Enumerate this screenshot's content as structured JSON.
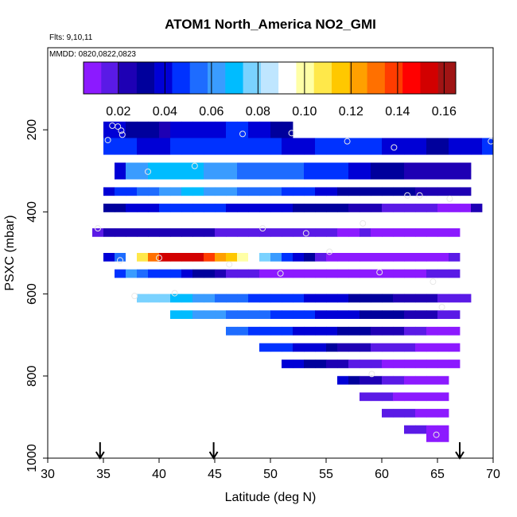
{
  "chart_data": {
    "type": "heatmap",
    "title": "ATOM1 North_America NO2_GMI",
    "annotations": [
      "Flts: 9,10,11",
      "MMDD: 0820,0822,0823"
    ],
    "xlabel": "Latitude (deg N)",
    "ylabel": "PSXC (mbar)",
    "xlim": [
      30,
      70
    ],
    "ylim": [
      1000,
      0
    ],
    "x_ticks": [
      "30",
      "35",
      "40",
      "45",
      "50",
      "55",
      "60",
      "65",
      "70"
    ],
    "y_ticks": [
      "200",
      "400",
      "600",
      "800",
      "1000"
    ],
    "grid": false,
    "colorbar": {
      "placement": "top",
      "range": [
        0.005,
        0.165
      ],
      "tick_values": [
        0.02,
        0.04,
        0.06,
        0.08,
        0.1,
        0.12,
        0.14,
        0.16
      ],
      "tick_labels": [
        "0.02",
        "0.04",
        "0.06",
        "0.08",
        "0.10",
        "0.12",
        "0.14",
        "0.16"
      ],
      "colors": [
        "#8c1aff",
        "#5a1ae6",
        "#1e00b4",
        "#00009c",
        "#0000d6",
        "#0032ff",
        "#1e6cff",
        "#3a9cff",
        "#00bcff",
        "#7ad2ff",
        "#bfe6ff",
        "#ffffff",
        "#ffffa6",
        "#ffe84a",
        "#ffc800",
        "#ffa000",
        "#ff7000",
        "#ff3c00",
        "#ff0000",
        "#d20000",
        "#a01414"
      ]
    },
    "cell_size": {
      "lat": 1,
      "pressure": 20
    },
    "rows": [
      {
        "p": 180,
        "from": 35,
        "to": 52,
        "values": [
          0.04,
          0.04,
          0.03,
          0.028,
          0.028,
          0.026,
          0.04,
          0.04,
          0.04,
          0.042,
          0.042,
          0.045,
          0.045,
          0.04,
          0.04,
          0.03,
          0.03
        ]
      },
      {
        "p": 200,
        "from": 35,
        "to": 52,
        "values": [
          0.038,
          0.038,
          0.03,
          0.028,
          0.028,
          0.026,
          0.038,
          0.04,
          0.04,
          0.042,
          0.042,
          0.045,
          0.045,
          0.04,
          0.04,
          0.03,
          0.03
        ]
      },
      {
        "p": 220,
        "from": 35,
        "to": 70,
        "values": [
          0.048,
          0.048,
          0.045,
          0.04,
          0.04,
          0.042,
          0.045,
          0.045,
          0.046,
          0.046,
          0.048,
          0.05,
          0.05,
          0.048,
          0.045,
          0.045,
          0.04,
          0.04,
          0.042,
          0.045,
          0.045,
          0.05,
          0.05,
          0.048,
          0.045,
          0.042,
          0.04,
          0.038,
          0.036,
          0.035,
          0.035,
          0.038,
          0.04,
          0.042,
          0.045
        ]
      },
      {
        "p": 240,
        "from": 35,
        "to": 70,
        "values": [
          0.048,
          0.048,
          0.045,
          0.04,
          0.04,
          0.042,
          0.045,
          0.045,
          0.046,
          0.046,
          0.048,
          0.05,
          0.05,
          0.048,
          0.045,
          0.045,
          0.04,
          0.04,
          0.042,
          0.045,
          0.045,
          0.05,
          0.05,
          0.048,
          0.045,
          0.042,
          0.04,
          0.038,
          0.036,
          0.035,
          0.035,
          0.038,
          0.04,
          0.042,
          0.045
        ]
      },
      {
        "p": 280,
        "from": 36,
        "to": 68,
        "values": [
          0.04,
          0.06,
          0.065,
          0.07,
          0.072,
          0.07,
          0.068,
          0.066,
          0.064,
          0.062,
          0.06,
          0.058,
          0.058,
          0.058,
          0.056,
          0.054,
          0.052,
          0.05,
          0.048,
          0.046,
          0.044,
          0.04,
          0.036,
          0.035,
          0.034,
          0.028,
          0.026,
          0.024,
          0.024,
          0.024,
          0.025,
          0.026
        ]
      },
      {
        "p": 300,
        "from": 36,
        "to": 68,
        "values": [
          0.04,
          0.06,
          0.065,
          0.07,
          0.072,
          0.07,
          0.068,
          0.066,
          0.064,
          0.062,
          0.06,
          0.058,
          0.058,
          0.058,
          0.056,
          0.054,
          0.052,
          0.05,
          0.048,
          0.046,
          0.044,
          0.04,
          0.036,
          0.035,
          0.034,
          0.028,
          0.026,
          0.024,
          0.024,
          0.024,
          0.025,
          0.026
        ]
      },
      {
        "p": 340,
        "from": 35,
        "to": 68,
        "values": [
          0.04,
          0.045,
          0.048,
          0.055,
          0.058,
          0.062,
          0.065,
          0.066,
          0.066,
          0.064,
          0.062,
          0.06,
          0.058,
          0.056,
          0.055,
          0.052,
          0.05,
          0.046,
          0.044,
          0.04,
          0.036,
          0.035,
          0.034,
          0.033,
          0.032,
          0.03,
          0.03,
          0.028,
          0.026,
          0.025,
          0.024,
          0.024,
          0.026
        ]
      },
      {
        "p": 380,
        "from": 35,
        "to": 69,
        "values": [
          0.03,
          0.032,
          0.036,
          0.04,
          0.042,
          0.044,
          0.046,
          0.046,
          0.046,
          0.045,
          0.044,
          0.043,
          0.042,
          0.041,
          0.04,
          0.038,
          0.036,
          0.034,
          0.032,
          0.03,
          0.03,
          0.028,
          0.026,
          0.024,
          0.022,
          0.02,
          0.019,
          0.018,
          0.016,
          0.014,
          0.012,
          0.01,
          0.012,
          0.022
        ]
      },
      {
        "p": 440,
        "from": 34,
        "to": 67,
        "values": [
          0.02,
          0.022,
          0.022,
          0.022,
          0.022,
          0.022,
          0.022,
          0.022,
          0.022,
          0.022,
          0.022,
          0.02,
          0.018,
          0.018,
          0.02,
          0.018,
          0.018,
          0.016,
          0.018,
          0.02,
          0.015,
          0.014,
          0.012,
          0.012,
          0.014,
          0.012,
          0.012,
          0.01,
          0.012,
          0.012,
          0.01,
          0.008,
          0.006
        ]
      },
      {
        "p": 500,
        "from": 35,
        "to": 67,
        "values": [
          0.04,
          0.055,
          0.09,
          0.11,
          0.13,
          0.15,
          0.155,
          0.155,
          0.15,
          0.14,
          0.125,
          0.115,
          0.1,
          0.09,
          0.075,
          0.06,
          0.05,
          0.04,
          0.03,
          0.018,
          0.012,
          0.01,
          0.012,
          0.01,
          0.01,
          0.012,
          0.012,
          0.01,
          0.01,
          0.012,
          0.01,
          0.015
        ]
      },
      {
        "p": 540,
        "from": 36,
        "to": 67,
        "values": [
          0.05,
          0.06,
          0.055,
          0.05,
          0.046,
          0.044,
          0.04,
          0.035,
          0.03,
          0.025,
          0.02,
          0.015,
          0.015,
          0.012,
          0.012,
          0.01,
          0.01,
          0.01,
          0.012,
          0.01,
          0.01,
          0.012,
          0.01,
          0.012,
          0.01,
          0.008,
          0.008,
          0.008,
          0.02,
          0.02,
          0.02
        ]
      },
      {
        "p": 600,
        "from": 37,
        "to": 68,
        "values": [
          0.09,
          0.08,
          0.078,
          0.075,
          0.072,
          0.07,
          0.065,
          0.06,
          0.058,
          0.055,
          0.052,
          0.05,
          0.048,
          0.046,
          0.045,
          0.044,
          0.042,
          0.04,
          0.038,
          0.036,
          0.034,
          0.032,
          0.03,
          0.028,
          0.026,
          0.025,
          0.024,
          0.022,
          0.02,
          0.02,
          0.02
        ]
      },
      {
        "p": 640,
        "from": 41,
        "to": 67,
        "values": [
          0.07,
          0.066,
          0.064,
          0.062,
          0.06,
          0.058,
          0.056,
          0.054,
          0.052,
          0.05,
          0.048,
          0.046,
          0.044,
          0.042,
          0.04,
          0.038,
          0.036,
          0.034,
          0.032,
          0.03,
          0.028,
          0.026,
          0.024,
          0.022,
          0.02,
          0.02
        ]
      },
      {
        "p": 680,
        "from": 46,
        "to": 67,
        "values": [
          0.055,
          0.052,
          0.05,
          0.048,
          0.046,
          0.044,
          0.042,
          0.04,
          0.038,
          0.036,
          0.034,
          0.03,
          0.028,
          0.026,
          0.024,
          0.022,
          0.02,
          0.016,
          0.012,
          0.01,
          0.01
        ]
      },
      {
        "p": 720,
        "from": 49,
        "to": 67,
        "values": [
          0.048,
          0.046,
          0.044,
          0.042,
          0.04,
          0.036,
          0.03,
          0.026,
          0.024,
          0.022,
          0.02,
          0.018,
          0.016,
          0.014,
          0.012,
          0.01,
          0.01,
          0.012
        ]
      },
      {
        "p": 760,
        "from": 51,
        "to": 67,
        "values": [
          0.042,
          0.04,
          0.034,
          0.028,
          0.024,
          0.022,
          0.02,
          0.016,
          0.014,
          0.012,
          0.01,
          0.01,
          0.01,
          0.01,
          0.008,
          0.008
        ]
      },
      {
        "p": 800,
        "from": 56,
        "to": 66,
        "values": [
          0.04,
          0.03,
          0.026,
          0.022,
          0.02,
          0.014,
          0.012,
          0.01,
          0.008,
          0.008
        ]
      },
      {
        "p": 840,
        "from": 58,
        "to": 66,
        "values": [
          0.02,
          0.016,
          0.014,
          0.012,
          0.01,
          0.008,
          0.008,
          0.008
        ]
      },
      {
        "p": 880,
        "from": 60,
        "to": 66,
        "values": [
          0.02,
          0.018,
          0.014,
          0.01,
          0.008,
          0.008
        ]
      },
      {
        "p": 920,
        "from": 62,
        "to": 66,
        "values": [
          0.018,
          0.02,
          0.01,
          0.008
        ]
      },
      {
        "p": 940,
        "from": 64,
        "to": 66,
        "values": [
          0.006,
          0.006
        ]
      }
    ],
    "points": [
      {
        "lat": 34.5,
        "p": 440
      },
      {
        "lat": 35.4,
        "p": 225
      },
      {
        "lat": 35.8,
        "p": 190
      },
      {
        "lat": 36.3,
        "p": 192
      },
      {
        "lat": 36.6,
        "p": 202
      },
      {
        "lat": 36.7,
        "p": 212
      },
      {
        "lat": 36.5,
        "p": 518
      },
      {
        "lat": 37.8,
        "p": 605
      },
      {
        "lat": 39.0,
        "p": 302
      },
      {
        "lat": 40.0,
        "p": 512
      },
      {
        "lat": 41.4,
        "p": 598
      },
      {
        "lat": 43.2,
        "p": 288
      },
      {
        "lat": 46.3,
        "p": 528
      },
      {
        "lat": 47.5,
        "p": 210
      },
      {
        "lat": 49.3,
        "p": 440
      },
      {
        "lat": 50.9,
        "p": 550
      },
      {
        "lat": 51.9,
        "p": 208
      },
      {
        "lat": 53.2,
        "p": 452
      },
      {
        "lat": 55.3,
        "p": 497
      },
      {
        "lat": 56.9,
        "p": 228
      },
      {
        "lat": 58.3,
        "p": 428
      },
      {
        "lat": 59.1,
        "p": 795
      },
      {
        "lat": 59.8,
        "p": 547
      },
      {
        "lat": 61.1,
        "p": 243
      },
      {
        "lat": 62.3,
        "p": 360
      },
      {
        "lat": 63.4,
        "p": 360
      },
      {
        "lat": 64.6,
        "p": 570
      },
      {
        "lat": 65.4,
        "p": 632
      },
      {
        "lat": 66.1,
        "p": 368
      },
      {
        "lat": 64.9,
        "p": 943
      },
      {
        "lat": 69.8,
        "p": 228
      }
    ],
    "arrows_lat": [
      34.7,
      44.9,
      67.0
    ]
  }
}
